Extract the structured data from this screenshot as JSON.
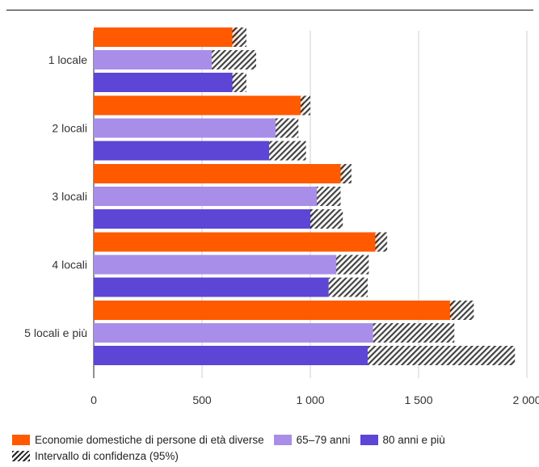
{
  "chart_data": {
    "type": "bar",
    "orientation": "horizontal",
    "categories": [
      "1 locale",
      "2 locali",
      "3 locali",
      "4 locali",
      "5 locali e più"
    ],
    "series": [
      {
        "name": "Economie domestiche di persone di età diverse",
        "color": "#ff5a00",
        "values": [
          665,
          970,
          1155,
          1315,
          1660
        ],
        "ci": [
          [
            640,
            705
          ],
          [
            955,
            1000
          ],
          [
            1140,
            1190
          ],
          [
            1300,
            1355
          ],
          [
            1645,
            1755
          ]
        ]
      },
      {
        "name": "65–79 anni",
        "color": "#a88ee8",
        "values": [
          545,
          845,
          1035,
          1125,
          1290
        ],
        "ci": [
          [
            545,
            750
          ],
          [
            840,
            945
          ],
          [
            1030,
            1140
          ],
          [
            1120,
            1270
          ],
          [
            1290,
            1665
          ]
        ]
      },
      {
        "name": "80 anni e più",
        "color": "#5d45d6",
        "values": [
          645,
          810,
          1010,
          1085,
          1265
        ],
        "ci": [
          [
            640,
            705
          ],
          [
            810,
            980
          ],
          [
            1000,
            1150
          ],
          [
            1085,
            1265
          ],
          [
            1265,
            1945
          ]
        ]
      }
    ],
    "ci_label": "Intervallo di confidenza (95%)",
    "xlim": [
      0,
      2000
    ],
    "xticks": [
      0,
      500,
      1000,
      1500,
      2000
    ],
    "xtick_labels": [
      "0",
      "500",
      "1 000",
      "1 500",
      "2 000"
    ],
    "grid": true,
    "legend_position": "bottom"
  }
}
